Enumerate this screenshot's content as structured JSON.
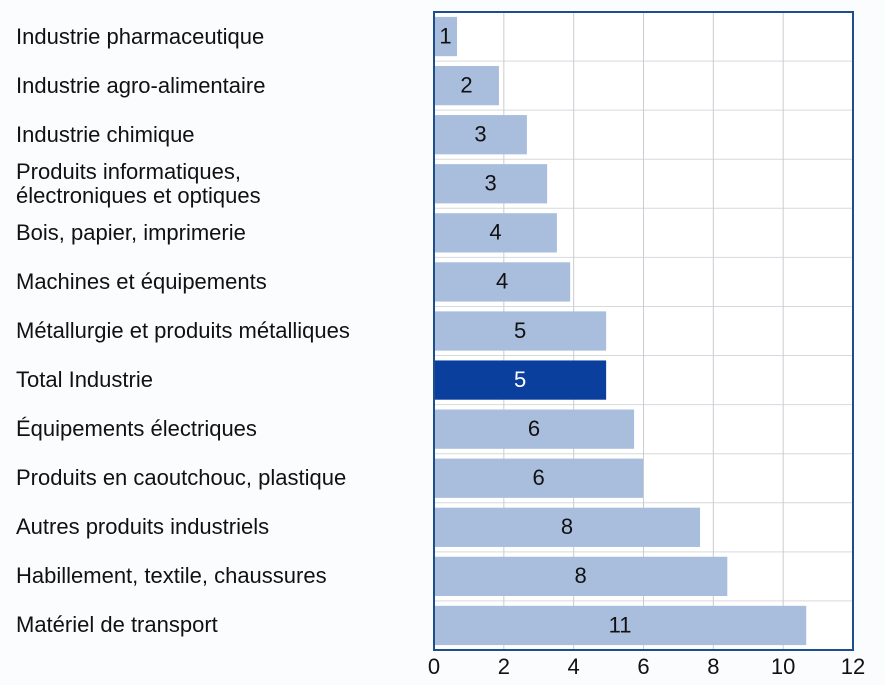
{
  "chart_data": {
    "type": "barh",
    "categories": [
      "Industrie pharmaceutique",
      "Industrie agro-alimentaire",
      "Industrie chimique",
      "Produits informatiques,\nélectroniques et optiques",
      "Bois, papier, imprimerie",
      "Machines et équipements",
      "Métallurgie et produits métalliques",
      "Total Industrie",
      "Équipements électriques",
      "Produits en caoutchouc, plastique",
      "Autres produits industriels",
      "Habillement, textile, chaussures",
      "Matériel de transport"
    ],
    "values": [
      0.66,
      1.86,
      2.66,
      3.24,
      3.52,
      3.9,
      4.93,
      4.93,
      5.73,
      5.99,
      7.62,
      8.4,
      10.66
    ],
    "value_labels": [
      "1",
      "2",
      "3",
      "3",
      "4",
      "4",
      "5",
      "5",
      "6",
      "6",
      "8",
      "8",
      "11"
    ],
    "colors": [
      "#a9bddd",
      "#a9bddd",
      "#a9bddd",
      "#a9bddd",
      "#a9bddd",
      "#a9bddd",
      "#a9bddd",
      "#0b3f9e",
      "#a9bddd",
      "#a9bddd",
      "#a9bddd",
      "#a9bddd",
      "#a9bddd"
    ],
    "xlim": [
      0,
      12
    ],
    "xticks": [
      0,
      2,
      4,
      6,
      8,
      10,
      12
    ],
    "grid": true
  }
}
